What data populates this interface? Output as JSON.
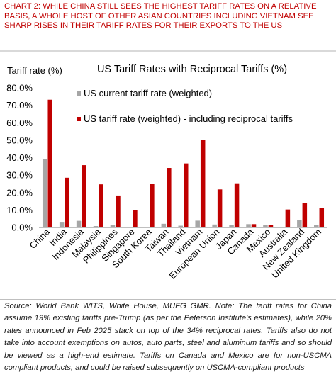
{
  "caption": "CHART 2: WHILE CHINA STILL SEES THE HIGHEST TARIFF RATES ON A RELATIVE BASIS, A WHOLE HOST OF OTHER ASIAN COUNTRIES INCLUDING VIETNAM SEE SHARP RISES IN THEIR TARIFF RATES FOR THEIR EXPORTS TO THE US",
  "source_note": "Source: World Bank WITS, White House, MUFG GMR. Note: The tariff rates for China assume 19% existing tariffs pre-Trump (as per the Peterson Institute's estimates), while 20% rates announced in Feb 2025 stack on top of the 34% reciprocal rates. Tariffs also do not take into account exemptions on autos, auto parts, steel and aluminum tariffs and so should be viewed as a high-end estimate. Tariffs on Canada and Mexico are for non-USCMA compliant products, and could be raised subsequently on USCMA-compliant products",
  "colors": {
    "caption": "#c00000",
    "current_series": "#a6a6a6",
    "reciprocal_series": "#c00000"
  },
  "chart_data": {
    "type": "bar",
    "title": "US Tariff Rates with Reciprocal Tariffs (%)",
    "ylabel": "Tariff rate (%)",
    "xlabel": "",
    "ylim": [
      0,
      80
    ],
    "yticks": [
      "0.0%",
      "10.0%",
      "20.0%",
      "30.0%",
      "40.0%",
      "50.0%",
      "60.0%",
      "70.0%",
      "80.0%"
    ],
    "grid": false,
    "legend_position": "top-right",
    "categories": [
      "China",
      "India",
      "Indonesia",
      "Malaysia",
      "Philippines",
      "Singapore",
      "South Korea",
      "Taiwan",
      "Thailand",
      "Vietnam",
      "European Union",
      "Japan",
      "Canada",
      "Mexico",
      "Australia",
      "New Zealand",
      "United Kingdom"
    ],
    "series": [
      {
        "name": "US current tariff rate (weighted)",
        "color": "#a6a6a6",
        "values": [
          39.2,
          2.8,
          3.8,
          0.8,
          1.5,
          0.2,
          0.2,
          2.1,
          1.0,
          3.9,
          1.7,
          1.5,
          1.9,
          1.6,
          0.3,
          4.2,
          1.3
        ]
      },
      {
        "name": "US tariff rate (weighted) - including reciprocal tariffs",
        "color": "#c00000",
        "values": [
          73.2,
          28.5,
          35.7,
          24.7,
          18.3,
          10.0,
          24.9,
          34.1,
          36.7,
          50.0,
          21.8,
          25.3,
          1.9,
          1.6,
          10.3,
          14.2,
          11.1
        ]
      }
    ]
  }
}
